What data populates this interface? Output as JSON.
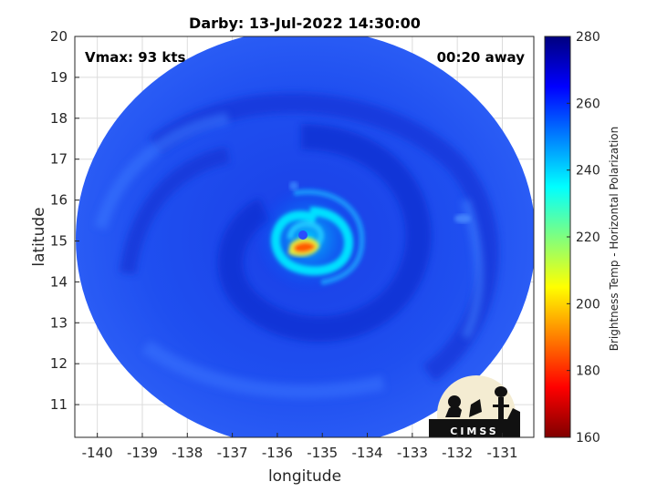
{
  "title": "Darby: 13-Jul-2022 14:30:00",
  "xlabel": "longitude",
  "ylabel": "latitude",
  "vmax_label": "Vmax: 93 kts",
  "time_away_label": "00:20 away",
  "logo_text": "CIMSS",
  "map": {
    "lon_range": [
      -140.5,
      -130.3
    ],
    "lat_range": [
      10.2,
      20
    ],
    "x_ticks": [
      "-140",
      "-139",
      "-138",
      "-137",
      "-136",
      "-135",
      "-134",
      "-133",
      "-132",
      "-131"
    ],
    "x_tick_values": [
      -140,
      -139,
      -138,
      -137,
      -136,
      -135,
      -134,
      -133,
      -132,
      -131
    ],
    "y_ticks": [
      "11",
      "12",
      "13",
      "14",
      "15",
      "16",
      "17",
      "18",
      "19",
      "20"
    ],
    "y_tick_values": [
      11,
      12,
      13,
      14,
      15,
      16,
      17,
      18,
      19,
      20
    ],
    "grid": true,
    "storm_center": {
      "lon": -135.2,
      "lat": 15.0
    }
  },
  "colorbar": {
    "label": "Brightness Temp - Horizontal Polarization",
    "range": [
      160,
      280
    ],
    "ticks": [
      "160",
      "180",
      "200",
      "220",
      "240",
      "260",
      "280"
    ],
    "tick_values": [
      160,
      180,
      200,
      220,
      240,
      260,
      280
    ],
    "colormap": "jet",
    "colors": [
      "#7f0000",
      "#ff0000",
      "#ff7f00",
      "#ffff00",
      "#7fff7f",
      "#00ffff",
      "#007fff",
      "#0000ff",
      "#00007f"
    ]
  }
}
